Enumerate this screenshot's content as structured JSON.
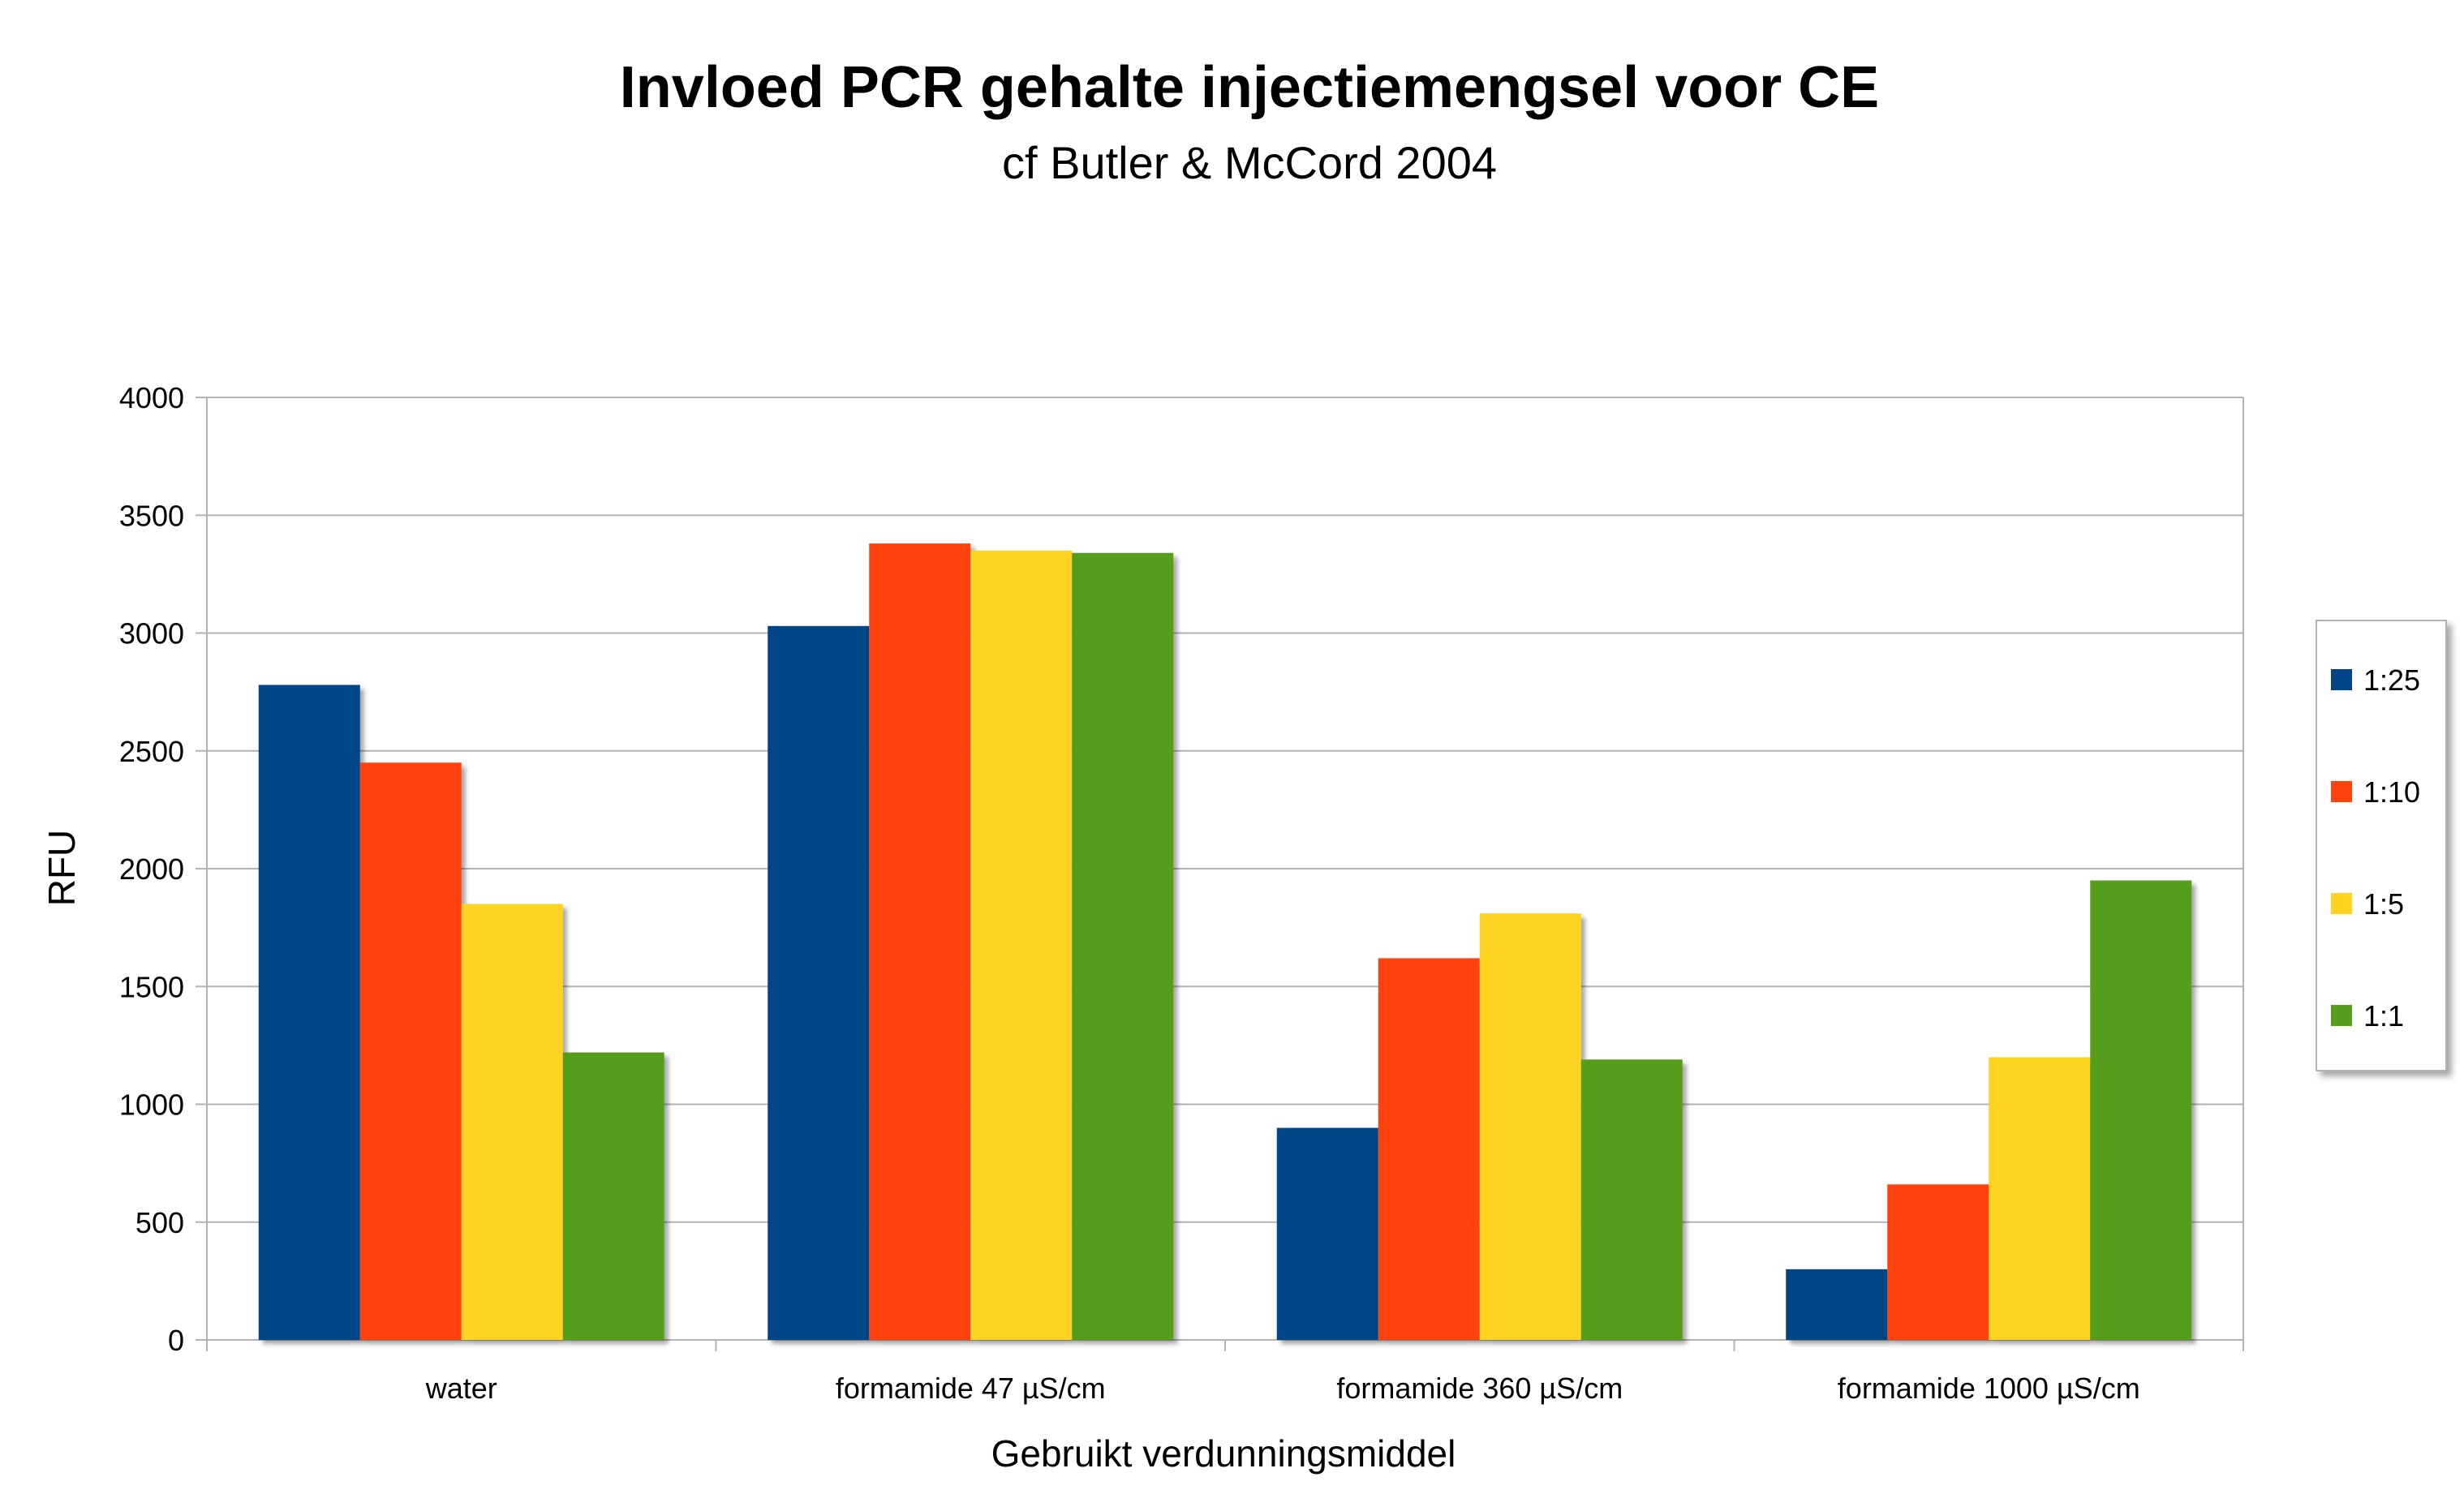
{
  "chart_data": {
    "type": "bar",
    "title": "Invloed PCR gehalte injectiemengsel voor CE",
    "subtitle": "cf Butler & McCord 2004",
    "xlabel": "Gebruikt verdunningsmiddel",
    "ylabel": "RFU",
    "ylim": [
      0,
      4000
    ],
    "yticks": [
      0,
      500,
      1000,
      1500,
      2000,
      2500,
      3000,
      3500,
      4000
    ],
    "grid": true,
    "legend_position": "right",
    "categories": [
      "water",
      "formamide 47 µS/cm",
      "formamide 360 µS/cm",
      "formamide 1000 µS/cm"
    ],
    "series": [
      {
        "name": "1:25",
        "color": "#004586",
        "values": [
          2780,
          3030,
          900,
          300
        ]
      },
      {
        "name": "1:10",
        "color": "#ff420e",
        "values": [
          2450,
          3380,
          1620,
          660
        ]
      },
      {
        "name": "1:5",
        "color": "#ffd320",
        "values": [
          1850,
          3350,
          1810,
          1200
        ]
      },
      {
        "name": "1:1",
        "color": "#579d1c",
        "values": [
          1220,
          3340,
          1190,
          1950
        ]
      }
    ]
  }
}
